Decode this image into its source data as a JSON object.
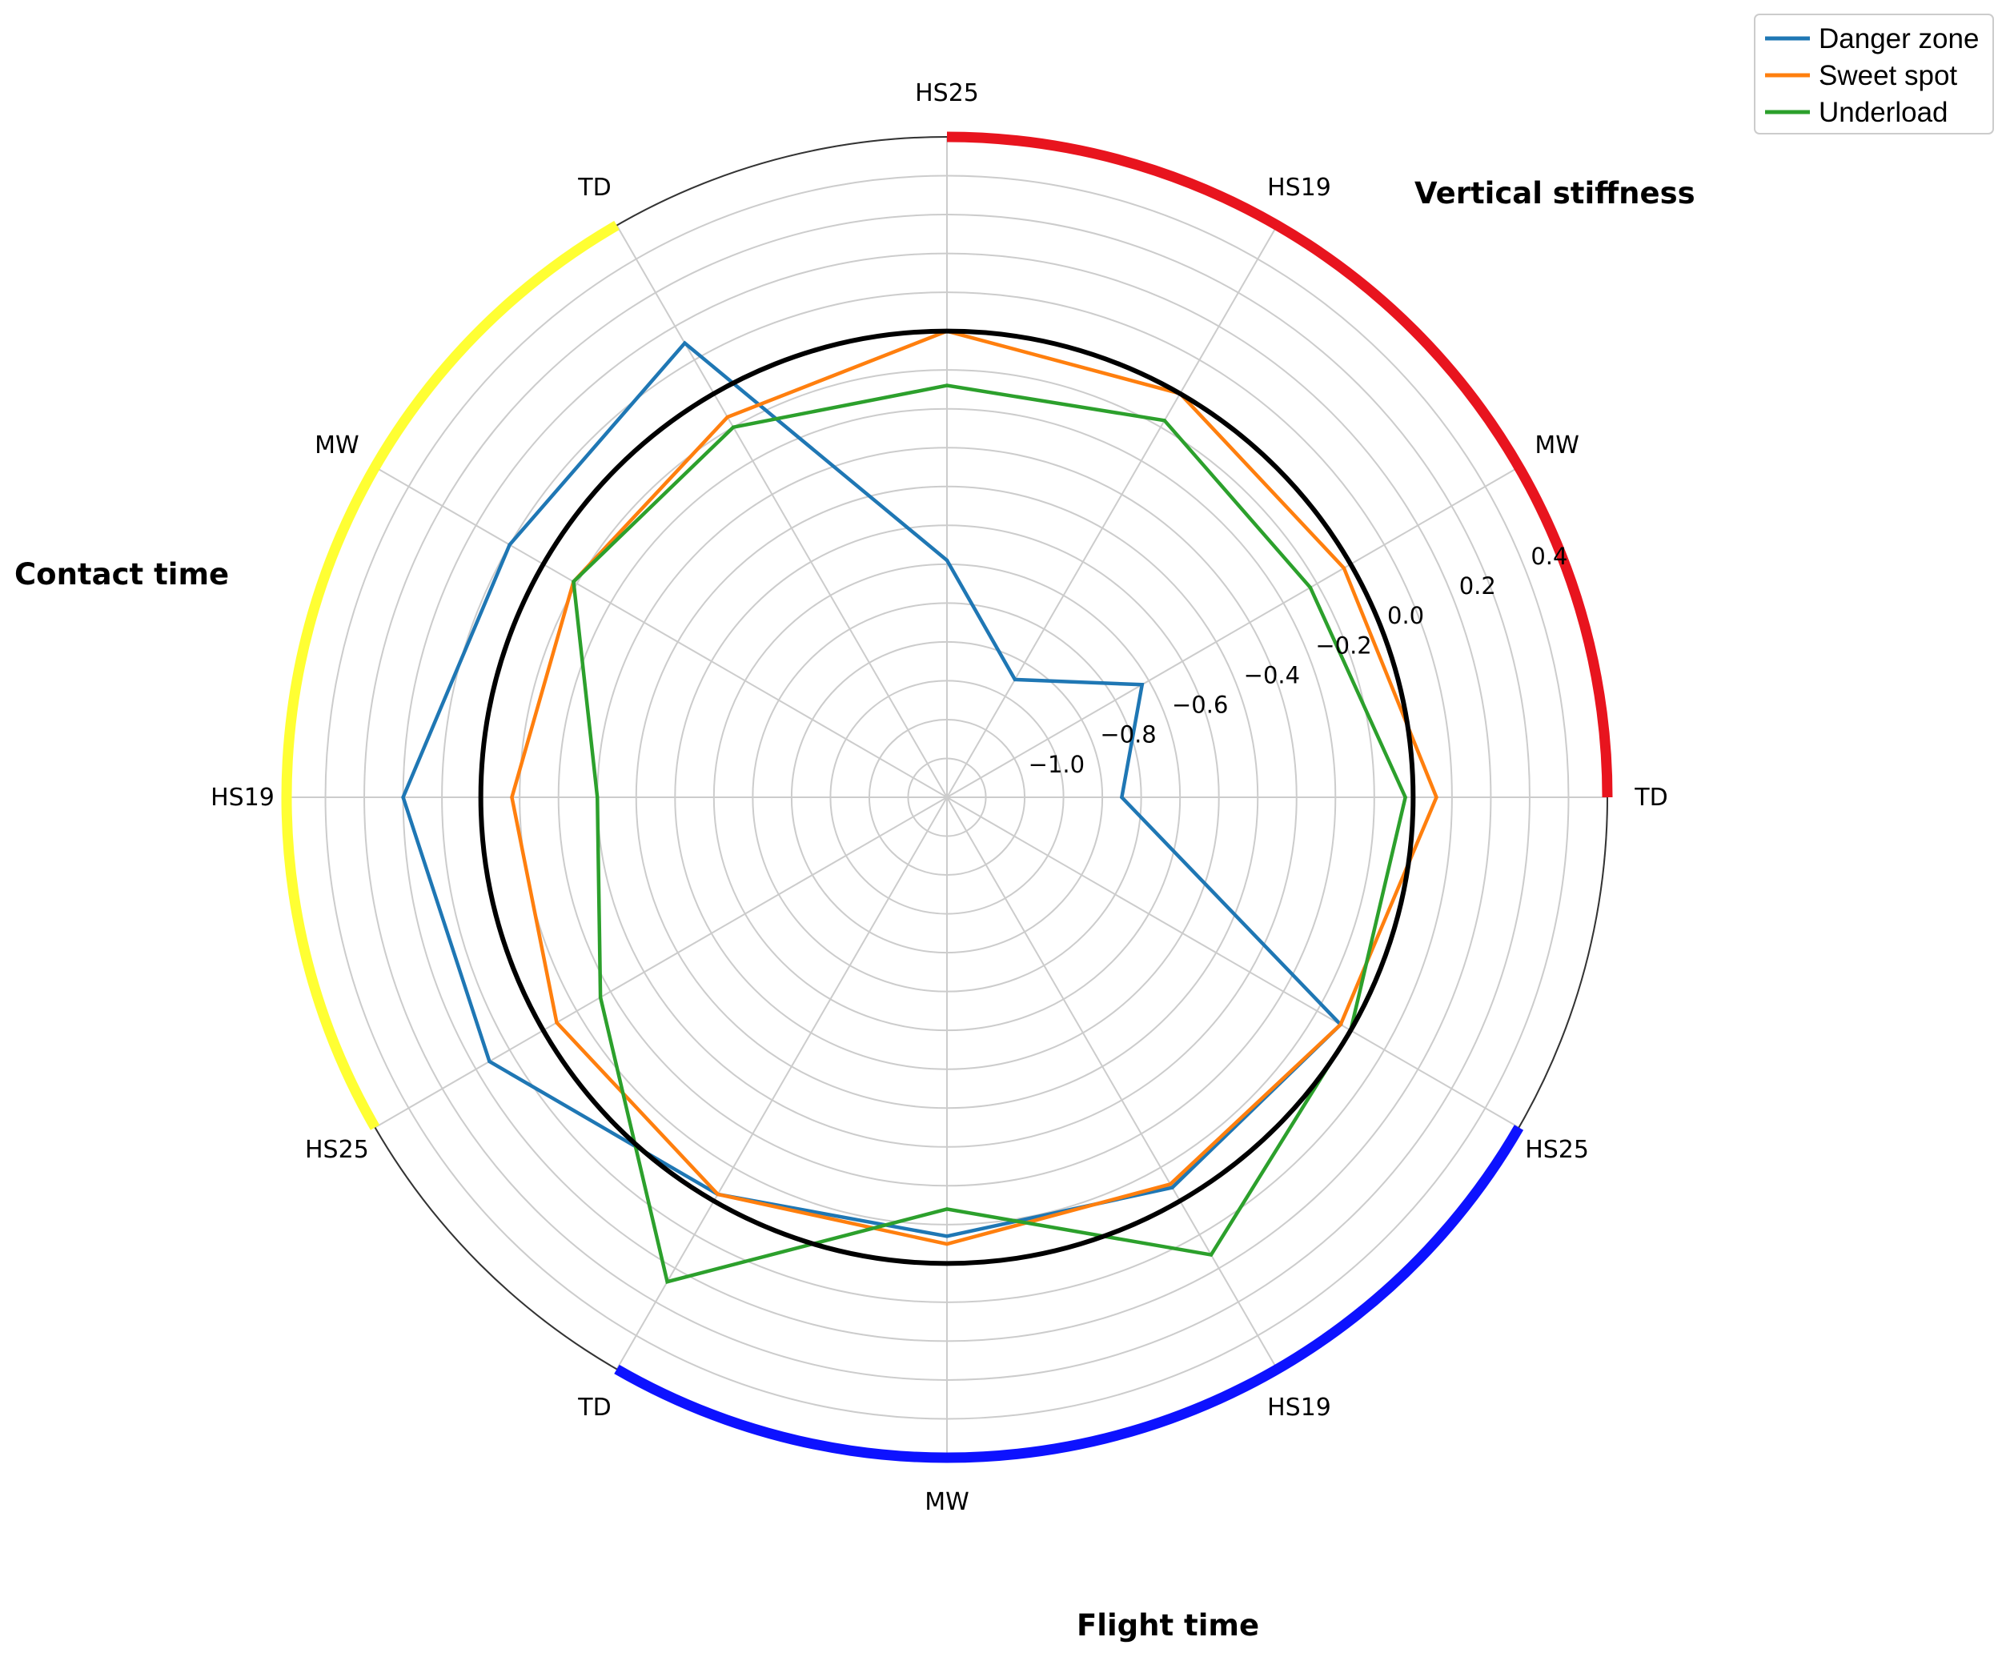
{
  "chart_data": {
    "type": "radar",
    "categories": [
      "TD",
      "MW",
      "HS19",
      "HS25",
      "TD",
      "MW",
      "HS19",
      "HS25",
      "TD",
      "MW",
      "HS19",
      "HS25"
    ],
    "groups": [
      {
        "label": "Vertical stiffness",
        "categories": [
          "TD",
          "MW",
          "HS19",
          "HS25"
        ],
        "color": "#e8141e"
      },
      {
        "label": "Contact time",
        "categories": [
          "TD",
          "MW",
          "HS19",
          "HS25"
        ],
        "color": "#ffff33"
      },
      {
        "label": "Flight time",
        "categories": [
          "TD",
          "MW",
          "HS19",
          "HS25"
        ],
        "color": "#0d12ff"
      }
    ],
    "series": [
      {
        "name": "Danger zone",
        "color": "#1f77b4",
        "values": [
          -0.75,
          -0.62,
          -0.85,
          -0.59,
          0.15,
          0.1,
          0.2,
          0.16,
          -0.02,
          -0.07,
          -0.04,
          -0.03
        ]
      },
      {
        "name": "Sweet spot",
        "color": "#ff7f0e",
        "values": [
          0.06,
          -0.02,
          0.0,
          0.0,
          -0.07,
          -0.09,
          -0.08,
          -0.04,
          -0.02,
          -0.05,
          -0.05,
          -0.03
        ]
      },
      {
        "name": "Underload",
        "color": "#2ca02c",
        "values": [
          -0.02,
          -0.12,
          -0.08,
          -0.14,
          -0.1,
          -0.09,
          -0.3,
          -0.17,
          0.24,
          -0.14,
          0.16,
          0.0
        ]
      }
    ],
    "reference_circle": 0.0,
    "rlim": [
      -1.2,
      0.5
    ],
    "r_grid": [
      -1.2,
      -1.1,
      -1.0,
      -0.9,
      -0.8,
      -0.7,
      -0.6,
      -0.5,
      -0.4,
      -0.3,
      -0.2,
      -0.1,
      0.0,
      0.1,
      0.2,
      0.3,
      0.4,
      0.5
    ],
    "r_ticks": [
      "−1.0",
      "−0.8",
      "−0.6",
      "−0.4",
      "−0.2",
      "0.0",
      "0.2",
      "0.4"
    ],
    "r_tick_values": [
      -1.0,
      -0.8,
      -0.6,
      -0.4,
      -0.2,
      0.0,
      0.2,
      0.4
    ],
    "grid": true,
    "legend_position": "top-right"
  }
}
